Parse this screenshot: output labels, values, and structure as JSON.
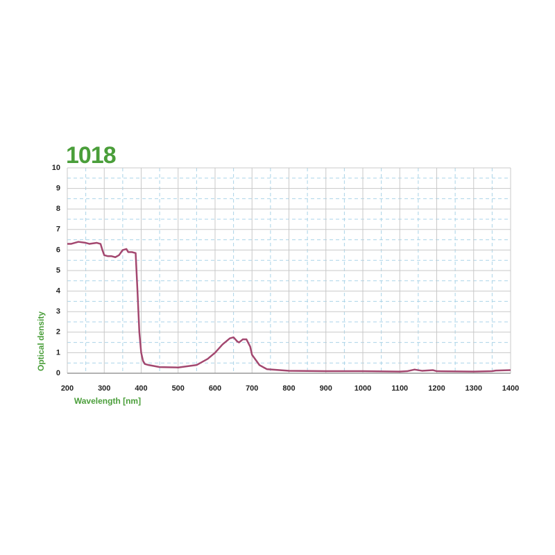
{
  "chart_data": {
    "type": "line",
    "title": "1018",
    "xlabel": "Wavelength [nm]",
    "ylabel": "Optical density",
    "x": [
      200,
      210,
      220,
      230,
      250,
      260,
      280,
      290,
      295,
      300,
      310,
      320,
      330,
      340,
      350,
      360,
      365,
      375,
      385,
      390,
      395,
      400,
      405,
      410,
      420,
      450,
      500,
      550,
      580,
      600,
      620,
      640,
      650,
      660,
      665,
      675,
      685,
      695,
      700,
      710,
      720,
      740,
      800,
      900,
      1000,
      1100,
      1120,
      1140,
      1160,
      1190,
      1200,
      1300,
      1350,
      1360,
      1400
    ],
    "series": [
      {
        "name": "1018",
        "color": "#a3476f",
        "values": [
          6.3,
          6.3,
          6.35,
          6.4,
          6.35,
          6.3,
          6.35,
          6.3,
          6.0,
          5.75,
          5.7,
          5.7,
          5.65,
          5.75,
          6.0,
          6.05,
          5.9,
          5.9,
          5.85,
          4.0,
          2.0,
          1.0,
          0.6,
          0.45,
          0.4,
          0.3,
          0.28,
          0.4,
          0.7,
          1.0,
          1.4,
          1.7,
          1.75,
          1.55,
          1.5,
          1.65,
          1.65,
          1.3,
          0.9,
          0.65,
          0.4,
          0.2,
          0.12,
          0.1,
          0.1,
          0.08,
          0.1,
          0.18,
          0.12,
          0.15,
          0.1,
          0.08,
          0.1,
          0.13,
          0.15
        ]
      }
    ],
    "xlim": [
      200,
      1400
    ],
    "xticks": [
      200,
      300,
      400,
      500,
      600,
      700,
      800,
      900,
      1000,
      1100,
      1200,
      1300,
      1400
    ],
    "ylim": [
      0,
      10
    ],
    "yticks": [
      0,
      1,
      2,
      3,
      4,
      5,
      6,
      7,
      8,
      9,
      10
    ],
    "grid": true
  }
}
